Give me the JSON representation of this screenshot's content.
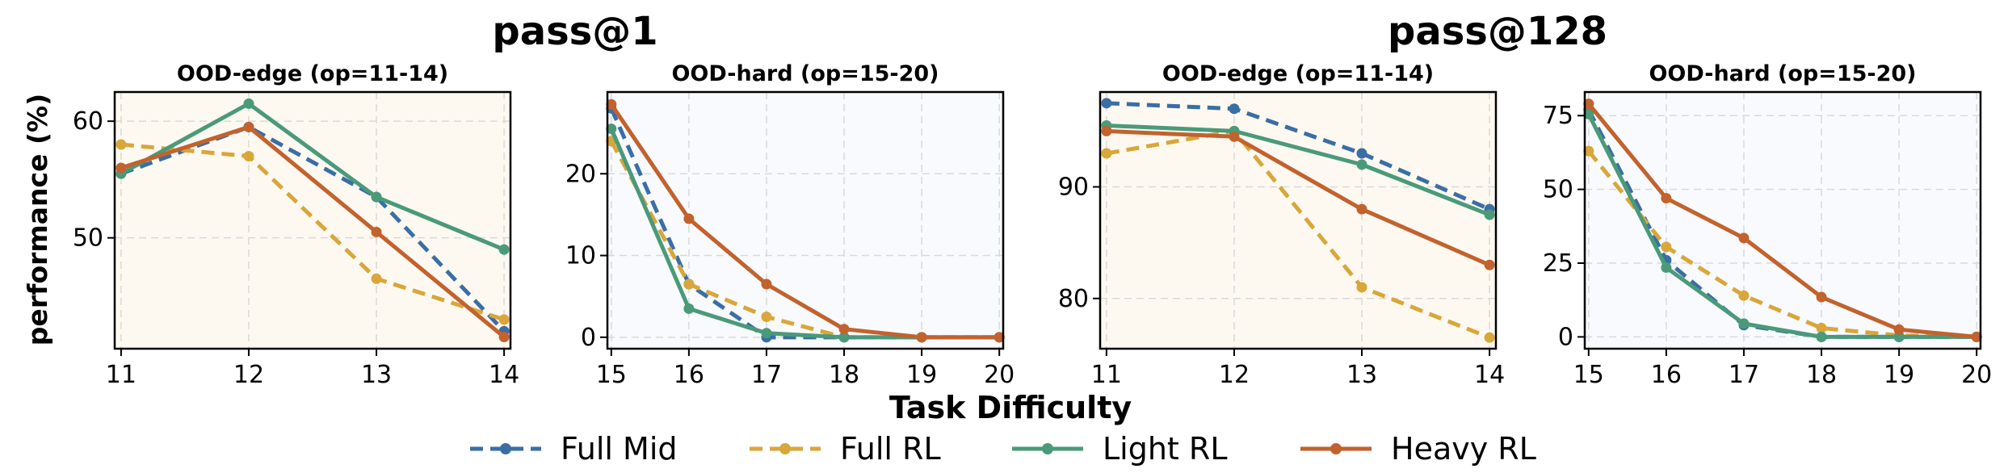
{
  "figure": {
    "group_titles": [
      "pass@1",
      "pass@128"
    ],
    "ylabel": "performance (%)",
    "xlabel": "Task Difficulty"
  },
  "legend": {
    "placement": "bottom-center",
    "items": [
      {
        "label": "Full Mid",
        "color": "#3a6ea5",
        "dashed": true
      },
      {
        "label": "Full RL",
        "color": "#d9a63a",
        "dashed": true
      },
      {
        "label": "Light RL",
        "color": "#4a9a7a",
        "dashed": false
      },
      {
        "label": "Heavy RL",
        "color": "#c2622d",
        "dashed": false
      }
    ]
  },
  "chart_data": [
    {
      "type": "line",
      "title": "OOD-edge (op=11-14)",
      "group": "pass@1",
      "background": "#fdf9f1",
      "x": [
        11,
        12,
        13,
        14
      ],
      "xlim": [
        10.95,
        14.05
      ],
      "ylim": [
        40.5,
        62.5
      ],
      "yticks": [
        50,
        60
      ],
      "grid": true,
      "series": [
        {
          "name": "Full Mid",
          "values": [
            55.5,
            59.5,
            53.5,
            42.0
          ]
        },
        {
          "name": "Full RL",
          "values": [
            58.0,
            57.0,
            46.5,
            43.0
          ]
        },
        {
          "name": "Light RL",
          "values": [
            55.5,
            61.5,
            53.5,
            49.0
          ]
        },
        {
          "name": "Heavy RL",
          "values": [
            56.0,
            59.5,
            50.5,
            41.5
          ]
        }
      ]
    },
    {
      "type": "line",
      "title": "OOD-hard (op=15-20)",
      "group": "pass@1",
      "background": "#f8fafd",
      "x": [
        15,
        16,
        17,
        18,
        19,
        20
      ],
      "xlim": [
        14.95,
        20.05
      ],
      "ylim": [
        -1.4,
        30.0
      ],
      "yticks": [
        0,
        10,
        20
      ],
      "grid": true,
      "series": [
        {
          "name": "Full Mid",
          "values": [
            28.0,
            6.5,
            0,
            0,
            0,
            0
          ]
        },
        {
          "name": "Full RL",
          "values": [
            24.0,
            6.5,
            2.5,
            0,
            0,
            0
          ]
        },
        {
          "name": "Light RL",
          "values": [
            25.5,
            3.5,
            0.5,
            0,
            0,
            0
          ]
        },
        {
          "name": "Heavy RL",
          "values": [
            28.5,
            14.5,
            6.5,
            1.0,
            0,
            0
          ]
        }
      ]
    },
    {
      "type": "line",
      "title": "OOD-edge (op=11-14)",
      "group": "pass@128",
      "background": "#fdf9f1",
      "x": [
        11,
        12,
        13,
        14
      ],
      "xlim": [
        10.95,
        14.05
      ],
      "ylim": [
        75.5,
        98.5
      ],
      "yticks": [
        80,
        90
      ],
      "grid": true,
      "series": [
        {
          "name": "Full Mid",
          "values": [
            97.5,
            97.0,
            93.0,
            88.0
          ]
        },
        {
          "name": "Full RL",
          "values": [
            93.0,
            95.0,
            81.0,
            76.5
          ]
        },
        {
          "name": "Light RL",
          "values": [
            95.5,
            95.0,
            92.0,
            87.5
          ]
        },
        {
          "name": "Heavy RL",
          "values": [
            95.0,
            94.5,
            88.0,
            83.0
          ]
        }
      ]
    },
    {
      "type": "line",
      "title": "OOD-hard (op=15-20)",
      "group": "pass@128",
      "background": "#f8fafd",
      "x": [
        15,
        16,
        17,
        18,
        19,
        20
      ],
      "xlim": [
        14.95,
        20.05
      ],
      "ylim": [
        -4.0,
        83.0
      ],
      "yticks": [
        0,
        25,
        50,
        75
      ],
      "grid": true,
      "series": [
        {
          "name": "Full Mid",
          "values": [
            77.0,
            26.0,
            4.0,
            0,
            0,
            0
          ]
        },
        {
          "name": "Full RL",
          "values": [
            63.0,
            30.5,
            14.0,
            3.0,
            0.5,
            0
          ]
        },
        {
          "name": "Light RL",
          "values": [
            75.5,
            23.5,
            4.5,
            0,
            0,
            0
          ]
        },
        {
          "name": "Heavy RL",
          "values": [
            79.0,
            47.0,
            33.5,
            13.5,
            2.5,
            0
          ]
        }
      ]
    }
  ]
}
